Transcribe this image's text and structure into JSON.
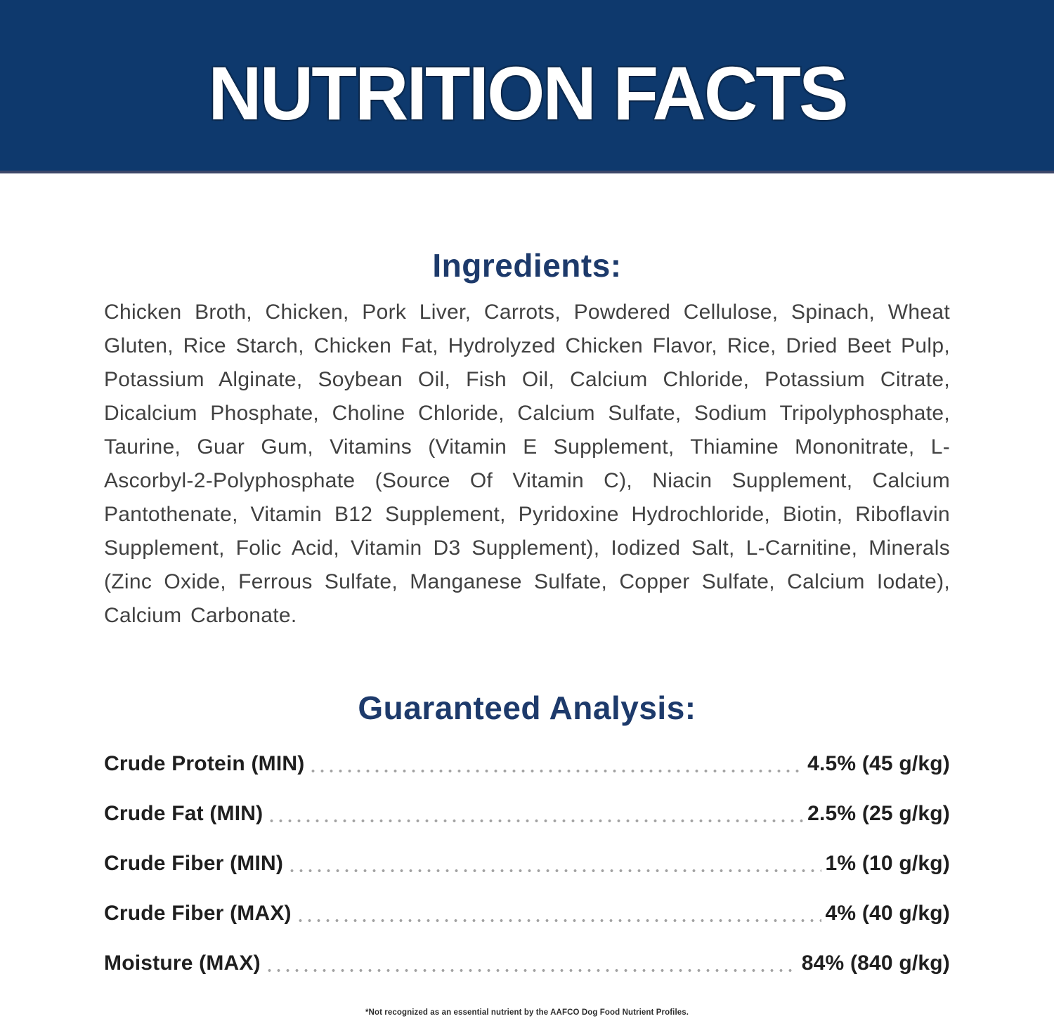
{
  "header": {
    "title": "NUTRITION FACTS",
    "band_color": "#0e396d",
    "title_color": "#ffffff"
  },
  "ingredients": {
    "heading": "Ingredients:",
    "text": "Chicken Broth, Chicken, Pork Liver, Carrots, Powdered Cellulose, Spinach, Wheat Gluten, Rice Starch, Chicken Fat, Hydrolyzed Chicken Flavor, Rice, Dried Beet Pulp, Potassium Alginate, Soybean Oil, Fish Oil, Calcium Chloride, Potassium Citrate, Dicalcium Phosphate, Choline Chloride, Calcium Sulfate, Sodium Tripolyphosphate, Taurine, Guar Gum, Vitamins (Vitamin E Supplement, Thiamine Mononitrate, L-Ascorbyl-2-Polyphosphate (Source Of Vitamin C), Niacin Supplement, Calcium Pantothenate, Vitamin B12 Supplement, Pyridoxine Hydrochloride, Biotin, Riboflavin Supplement, Folic Acid, Vitamin D3 Supplement), Iodized Salt, L-Carnitine, Minerals (Zinc Oxide, Ferrous Sulfate, Manganese Sulfate, Copper Sulfate, Calcium Iodate), Calcium Carbonate."
  },
  "guaranteed_analysis": {
    "heading": "Guaranteed Analysis:",
    "rows": [
      {
        "label": "Crude Protein (MIN)",
        "value": "4.5% (45 g/kg)"
      },
      {
        "label": "Crude Fat (MIN)",
        "value": "2.5% (25 g/kg)"
      },
      {
        "label": "Crude Fiber (MIN)",
        "value": "1% (10 g/kg)"
      },
      {
        "label": "Crude Fiber (MAX)",
        "value": "4% (40 g/kg)"
      },
      {
        "label": "Moisture (MAX)",
        "value": "84% (840 g/kg)"
      }
    ]
  },
  "footnote": "*Not recognized as an essential nutrient by the AAFCO Dog Food Nutrient Profiles.",
  "colors": {
    "band": "#0e396d",
    "heading": "#1d3a6b",
    "body_text": "#414141",
    "row_text": "#1f1f1f",
    "leader_dots": "#a2a2a2"
  }
}
